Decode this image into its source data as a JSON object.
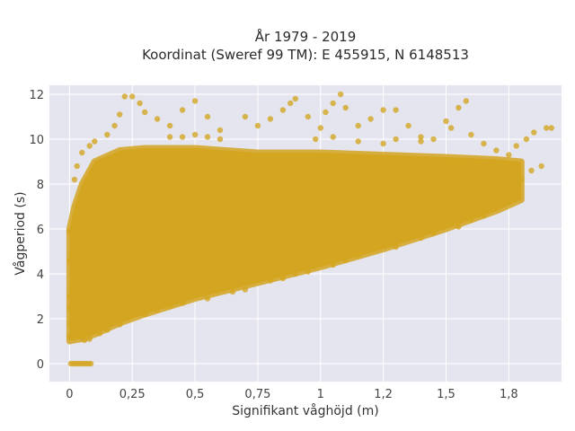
{
  "chart_data": {
    "type": "scatter",
    "title_lines": [
      "År 1979 - 2019",
      "Koordinat (Sweref 99 TM): E 455915, N 6148513"
    ],
    "xlabel": "Signifikant våghöjd (m)",
    "ylabel": "Vågperiod (s)",
    "xlim": [
      -0.08,
      1.96
    ],
    "ylim": [
      -0.8,
      12.4
    ],
    "x_ticks": [
      {
        "value": 0,
        "label": "0"
      },
      {
        "value": 0.25,
        "label": "0,25"
      },
      {
        "value": 0.5,
        "label": "0,5"
      },
      {
        "value": 0.75,
        "label": "0,75"
      },
      {
        "value": 1.0,
        "label": "1"
      },
      {
        "value": 1.25,
        "label": "1,2"
      },
      {
        "value": 1.5,
        "label": "1,5"
      },
      {
        "value": 1.75,
        "label": "1,8"
      }
    ],
    "y_ticks": [
      {
        "value": 0,
        "label": "0"
      },
      {
        "value": 2,
        "label": "2"
      },
      {
        "value": 4,
        "label": "4"
      },
      {
        "value": 6,
        "label": "6"
      },
      {
        "value": 8,
        "label": "8"
      },
      {
        "value": 10,
        "label": "10"
      },
      {
        "value": 12,
        "label": "12"
      }
    ],
    "grid": true,
    "marker_color": "#D4A520",
    "plot_background": "#E5E5F0",
    "dense_envelope": {
      "x": [
        0.0,
        0.02,
        0.05,
        0.1,
        0.2,
        0.3,
        0.5,
        0.75,
        1.0,
        1.25,
        1.5,
        1.7,
        1.8
      ],
      "y_lower": [
        1.0,
        1.05,
        1.1,
        1.3,
        1.8,
        2.2,
        2.9,
        3.6,
        4.3,
        5.1,
        6.0,
        6.8,
        7.3
      ],
      "y_upper": [
        6.0,
        7.0,
        8.0,
        9.0,
        9.5,
        9.6,
        9.6,
        9.4,
        9.4,
        9.3,
        9.2,
        9.1,
        9.0
      ]
    },
    "points": [
      [
        0.005,
        0.0
      ],
      [
        0.015,
        0.0
      ],
      [
        0.025,
        0.0
      ],
      [
        0.035,
        0.0
      ],
      [
        0.045,
        0.0
      ],
      [
        0.055,
        0.0
      ],
      [
        0.065,
        0.0
      ],
      [
        0.075,
        0.0
      ],
      [
        0.085,
        0.0
      ],
      [
        0.0,
        1.2
      ],
      [
        0.0,
        2.5
      ],
      [
        0.0,
        3.0
      ],
      [
        0.0,
        4.6
      ],
      [
        0.0,
        5.9
      ],
      [
        0.005,
        1.8
      ],
      [
        0.01,
        3.6
      ],
      [
        0.06,
        1.05
      ],
      [
        0.08,
        1.1
      ],
      [
        0.12,
        1.35
      ],
      [
        0.15,
        1.5
      ],
      [
        0.2,
        1.75
      ],
      [
        0.3,
        2.2
      ],
      [
        0.35,
        2.4
      ],
      [
        0.4,
        2.55
      ],
      [
        0.45,
        2.7
      ],
      [
        0.55,
        2.9
      ],
      [
        0.65,
        3.2
      ],
      [
        0.7,
        3.3
      ],
      [
        0.8,
        3.7
      ],
      [
        0.85,
        3.8
      ],
      [
        0.9,
        4.0
      ],
      [
        0.95,
        4.1
      ],
      [
        1.05,
        4.4
      ],
      [
        1.1,
        4.6
      ],
      [
        1.15,
        4.8
      ],
      [
        1.3,
        5.2
      ],
      [
        1.4,
        5.6
      ],
      [
        1.45,
        5.8
      ],
      [
        1.55,
        6.1
      ],
      [
        1.6,
        6.4
      ],
      [
        1.65,
        6.6
      ],
      [
        1.7,
        6.9
      ],
      [
        1.75,
        7.2
      ],
      [
        1.72,
        8.9
      ],
      [
        1.78,
        9.7
      ],
      [
        1.82,
        10.0
      ],
      [
        1.85,
        10.3
      ],
      [
        1.9,
        10.5
      ],
      [
        1.92,
        10.5
      ],
      [
        1.88,
        8.8
      ],
      [
        1.84,
        8.6
      ],
      [
        1.8,
        8.2
      ],
      [
        1.75,
        9.3
      ],
      [
        1.7,
        9.5
      ],
      [
        1.65,
        9.8
      ],
      [
        1.6,
        10.2
      ],
      [
        0.02,
        8.2
      ],
      [
        0.03,
        8.8
      ],
      [
        0.05,
        9.4
      ],
      [
        0.08,
        9.7
      ],
      [
        0.1,
        9.9
      ],
      [
        0.15,
        10.2
      ],
      [
        0.18,
        10.6
      ],
      [
        0.2,
        11.1
      ],
      [
        0.22,
        11.9
      ],
      [
        0.25,
        11.9
      ],
      [
        0.28,
        11.6
      ],
      [
        0.3,
        11.2
      ],
      [
        0.35,
        10.9
      ],
      [
        0.4,
        10.6
      ],
      [
        0.45,
        11.3
      ],
      [
        0.5,
        11.7
      ],
      [
        0.55,
        11.0
      ],
      [
        0.6,
        10.4
      ],
      [
        0.7,
        11.0
      ],
      [
        0.75,
        10.6
      ],
      [
        0.8,
        10.9
      ],
      [
        0.85,
        11.3
      ],
      [
        0.88,
        11.6
      ],
      [
        0.9,
        11.8
      ],
      [
        0.95,
        11.0
      ],
      [
        1.0,
        10.5
      ],
      [
        1.02,
        11.2
      ],
      [
        1.05,
        11.6
      ],
      [
        1.08,
        12.0
      ],
      [
        1.1,
        11.4
      ],
      [
        1.15,
        10.6
      ],
      [
        1.2,
        10.9
      ],
      [
        1.25,
        11.3
      ],
      [
        1.3,
        11.3
      ],
      [
        1.35,
        10.6
      ],
      [
        1.4,
        10.1
      ],
      [
        1.45,
        10.0
      ],
      [
        1.5,
        10.8
      ],
      [
        1.52,
        10.5
      ],
      [
        1.55,
        11.4
      ],
      [
        1.58,
        11.7
      ],
      [
        1.4,
        9.9
      ],
      [
        1.3,
        10.0
      ],
      [
        1.25,
        9.8
      ],
      [
        1.15,
        9.9
      ],
      [
        1.05,
        10.1
      ],
      [
        0.98,
        10.0
      ],
      [
        0.6,
        10.0
      ],
      [
        0.55,
        10.1
      ],
      [
        0.5,
        10.2
      ],
      [
        0.45,
        10.1
      ],
      [
        0.4,
        10.1
      ]
    ]
  }
}
